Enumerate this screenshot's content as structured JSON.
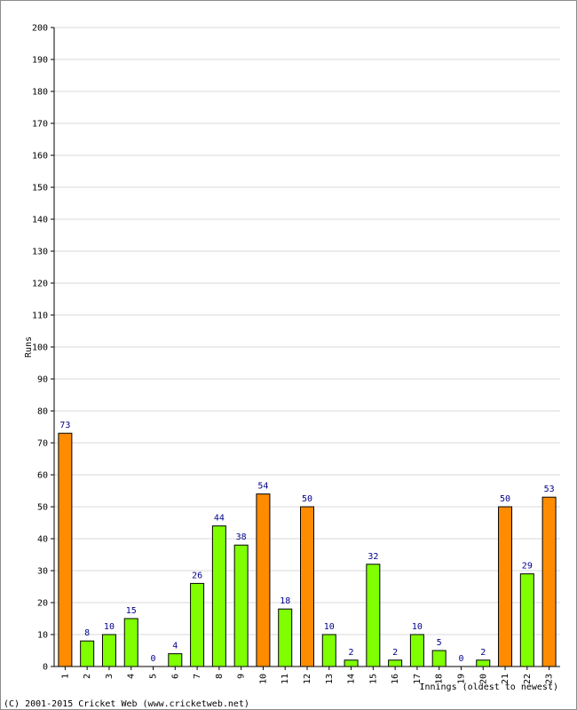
{
  "chart_data": {
    "type": "bar",
    "title": "",
    "xlabel": "Innings (oldest to newest)",
    "ylabel": "Runs",
    "ylim": [
      0,
      200
    ],
    "ytick_step": 10,
    "grid": true,
    "categories": [
      "1",
      "2",
      "3",
      "4",
      "5",
      "6",
      "7",
      "8",
      "9",
      "10",
      "11",
      "12",
      "13",
      "14",
      "15",
      "16",
      "17",
      "18",
      "19",
      "20",
      "21",
      "22",
      "23"
    ],
    "values": [
      73,
      8,
      10,
      15,
      0,
      4,
      26,
      44,
      38,
      54,
      18,
      50,
      10,
      2,
      32,
      2,
      10,
      5,
      0,
      2,
      50,
      29,
      53
    ],
    "colors": {
      "below_fifty": "#80ff00",
      "fifty_plus": "#ff8c00",
      "bar_outline": "#000000",
      "data_label": "#00008b",
      "grid": "#d9d9d9"
    }
  },
  "footer": {
    "copyright": "(C) 2001-2015 Cricket Web (www.cricketweb.net)"
  }
}
